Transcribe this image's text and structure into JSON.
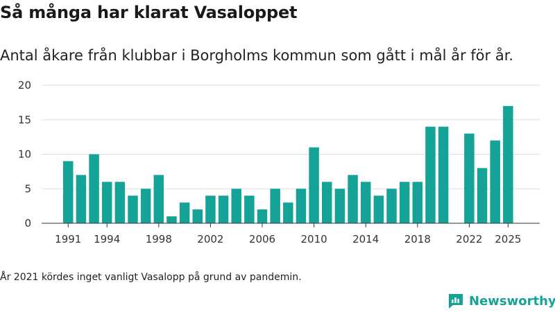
{
  "title": "Så många har klarat Vasaloppet",
  "subtitle": "Antal åkare från klubbar i Borgholms kommun som gått i mål år för år.",
  "footnote": "År 2021 kördes inget vanligt Vasalopp på grund av pandemin.",
  "brand": {
    "name": "Newsworthy",
    "icon": "newsworthy-logo-icon",
    "color": "#16a397"
  },
  "chart_data": {
    "type": "bar",
    "title": "Så många har klarat Vasaloppet",
    "subtitle": "Antal åkare från klubbar i Borgholms kommun som gått i mål år för år.",
    "xlabel": "",
    "ylabel": "",
    "bar_color": "#16a397",
    "grid": true,
    "ylim": [
      0,
      20
    ],
    "yticks": [
      0,
      5,
      10,
      15,
      20
    ],
    "xticks": [
      1991,
      1994,
      1998,
      2002,
      2006,
      2010,
      2014,
      2018,
      2022,
      2025
    ],
    "x": [
      1991,
      1992,
      1993,
      1994,
      1995,
      1996,
      1997,
      1998,
      1999,
      2000,
      2001,
      2002,
      2003,
      2004,
      2005,
      2006,
      2007,
      2008,
      2009,
      2010,
      2011,
      2012,
      2013,
      2014,
      2015,
      2016,
      2017,
      2018,
      2019,
      2020,
      2021,
      2022,
      2023,
      2024,
      2025
    ],
    "values": [
      9,
      7,
      10,
      6,
      6,
      4,
      5,
      7,
      1,
      3,
      2,
      4,
      4,
      5,
      4,
      2,
      5,
      3,
      5,
      11,
      6,
      5,
      7,
      6,
      4,
      5,
      6,
      6,
      14,
      14,
      null,
      13,
      8,
      12,
      17
    ]
  }
}
